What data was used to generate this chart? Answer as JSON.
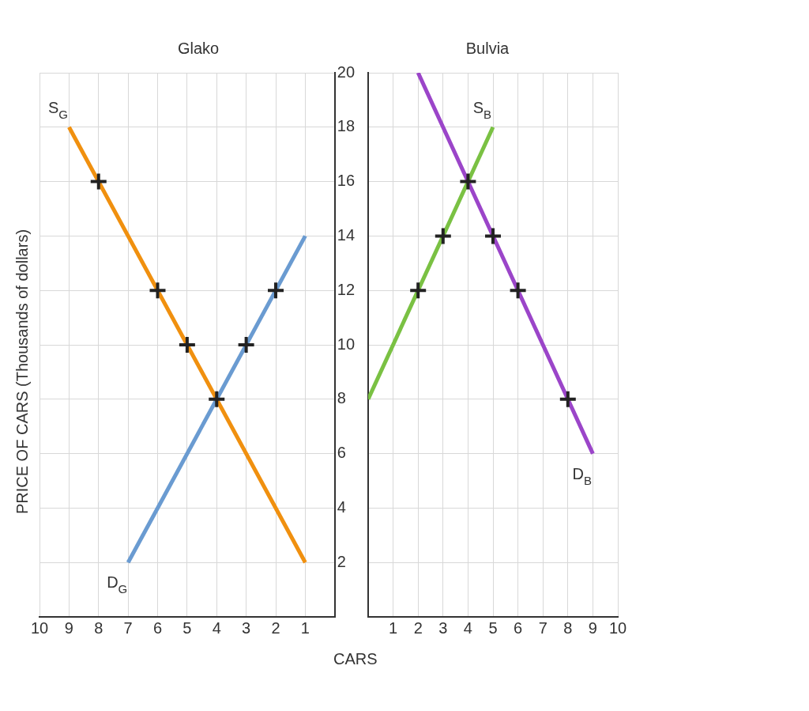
{
  "chart_data": [
    {
      "type": "line",
      "title": "Glako",
      "ylabel": "PRICE OF CARS (Thousands of dollars)",
      "xlabel": "CARS",
      "xlim": [
        10,
        0
      ],
      "xticks": [
        10,
        9,
        8,
        7,
        6,
        5,
        4,
        3,
        2,
        1
      ],
      "ylim": [
        0,
        20
      ],
      "yticks": [
        2,
        4,
        6,
        8,
        10,
        12,
        14,
        16,
        18,
        20
      ],
      "grid": true,
      "legend": false,
      "marker": "none",
      "line_style": "solid",
      "series": [
        {
          "name": "S$_{G}$",
          "color": "#f0900f",
          "x": [
            9,
            1
          ],
          "values": [
            18,
            2
          ]
        },
        {
          "name": "D$_{G}$",
          "color": "#6a9bd1",
          "x": [
            7,
            1
          ],
          "values": [
            2,
            14
          ]
        },
        {
          "type": "scatter",
          "marker": "cross",
          "color": "#222222",
          "x": [
            8,
            6,
            5,
            4,
            3,
            2
          ],
          "values": [
            16,
            12,
            10,
            8,
            10,
            12
          ]
        }
      ]
    },
    {
      "type": "line",
      "title": "Bulvia",
      "xlim": [
        0,
        10
      ],
      "xticks": [
        1,
        2,
        3,
        4,
        5,
        6,
        7,
        8,
        9,
        10
      ],
      "ylim": [
        0,
        20
      ],
      "yticks": [
        2,
        4,
        6,
        8,
        10,
        12,
        14,
        16,
        18,
        20
      ],
      "tick_labels": "x",
      "grid": true,
      "legend": false,
      "marker": "none",
      "line_style": "solid",
      "series": [
        {
          "name": "S$_{B}$",
          "color": "#7ac143",
          "x": [
            5,
            0
          ],
          "values": [
            18,
            8
          ]
        },
        {
          "name": "D$_{B}$",
          "color": "#9b45c9",
          "x": [
            9,
            2
          ],
          "values": [
            6,
            20
          ]
        },
        {
          "type": "scatter",
          "marker": "cross",
          "color": "#222222",
          "x": [
            2,
            3,
            4,
            5,
            6,
            8
          ],
          "values": [
            12,
            14,
            16,
            14,
            12,
            8
          ]
        }
      ]
    }
  ]
}
